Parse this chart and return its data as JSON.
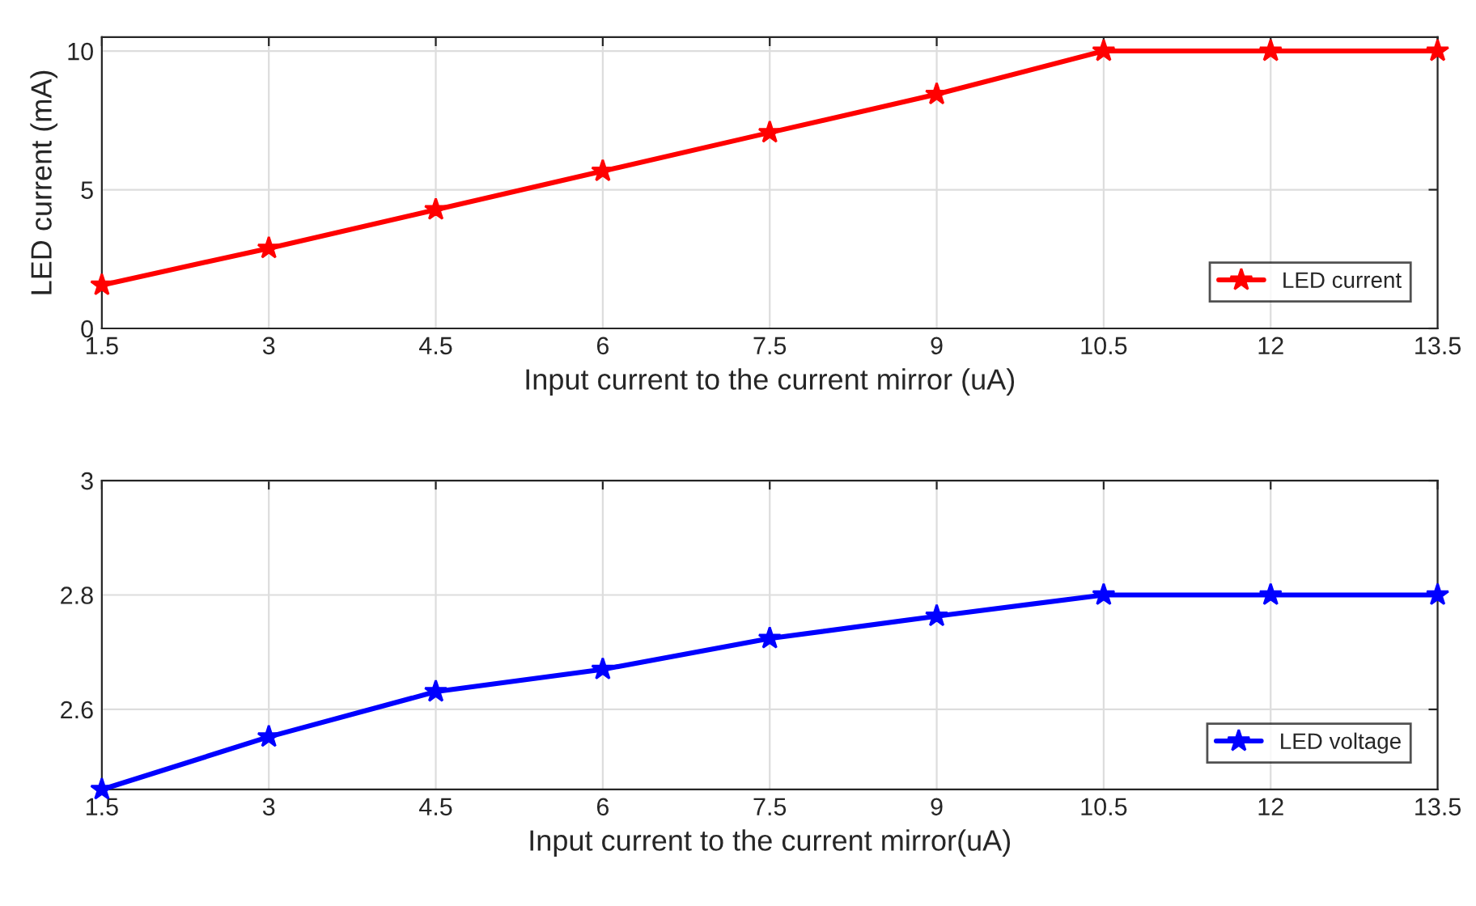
{
  "chart_data": [
    {
      "type": "line",
      "xlabel": "Input current to the current mirror (uA)",
      "ylabel": "LED current (mA)",
      "x": [
        1.5,
        3,
        4.5,
        6,
        7.5,
        9,
        10.5,
        12,
        13.5
      ],
      "series": [
        {
          "name": "LED current",
          "color": "#ff0000",
          "values": [
            1.56,
            2.89,
            4.28,
            5.67,
            7.06,
            8.44,
            10,
            10,
            10
          ]
        }
      ],
      "xlim": [
        1.5,
        13.5
      ],
      "xticks": [
        1.5,
        3,
        4.5,
        6,
        7.5,
        9,
        10.5,
        12,
        13.5
      ],
      "ylim": [
        0,
        10.5
      ],
      "yticks": [
        0,
        5,
        10
      ],
      "grid": true,
      "legend": "bottom right",
      "marker": "star",
      "line_style": "solid"
    },
    {
      "type": "line",
      "xlabel": "Input current to the current mirror(uA)",
      "x": [
        1.5,
        3,
        4.5,
        6,
        7.5,
        9,
        10.5,
        12,
        13.5
      ],
      "series": [
        {
          "name": "LED voltage",
          "color": "#0000ff",
          "values": [
            2.46,
            2.552,
            2.631,
            2.67,
            2.724,
            2.763,
            2.8,
            2.8,
            2.8
          ]
        }
      ],
      "xlim": [
        1.5,
        13.5
      ],
      "xticks": [
        1.5,
        3,
        4.5,
        6,
        7.5,
        9,
        10.5,
        12,
        13.5
      ],
      "ylim": [
        2.46,
        3
      ],
      "yticks": [
        2.6,
        2.8,
        3
      ],
      "grid": true,
      "legend": "bottom right",
      "marker": "star",
      "line_style": "solid"
    }
  ]
}
